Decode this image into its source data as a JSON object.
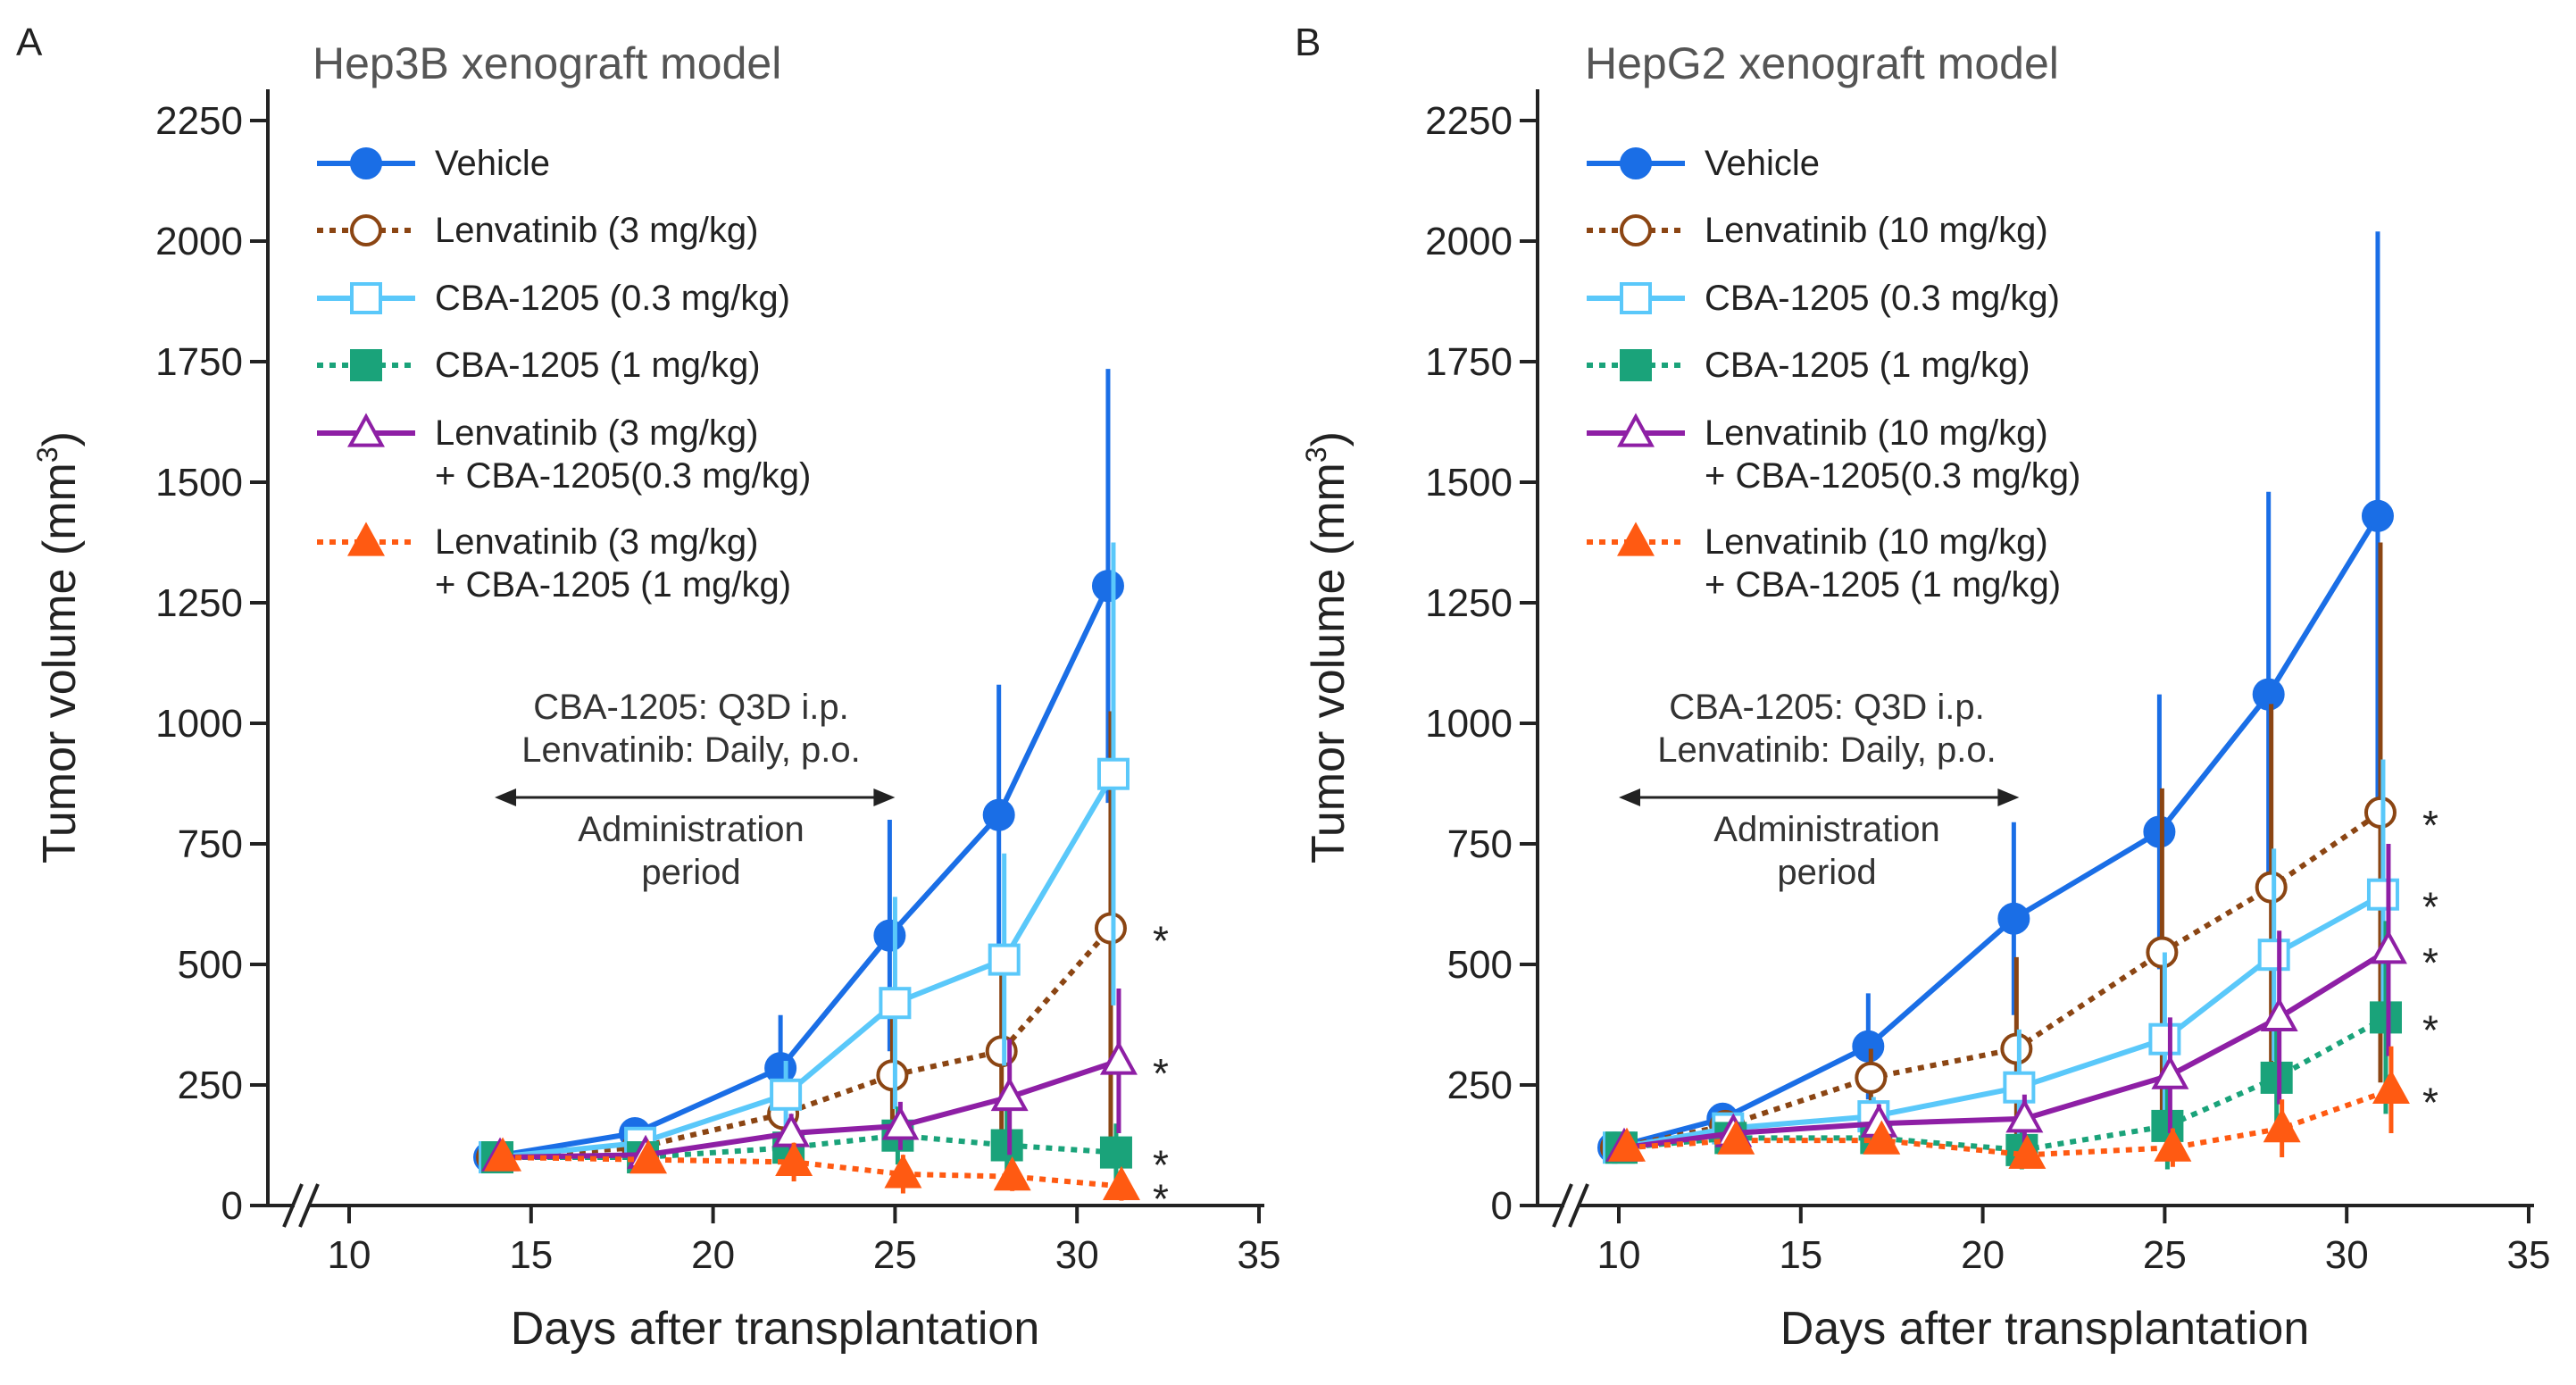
{
  "chart_data": [
    {
      "panel": "A",
      "type": "line",
      "title": "Hep3B xenograft model",
      "xlabel": "Days after transplantation",
      "ylabel": "Tumor volume (mm",
      "ylabel_sup": "3",
      "ylabel_close": ")",
      "xlim": [
        8,
        35
      ],
      "ylim": [
        0,
        2250
      ],
      "xticks": [
        10,
        15,
        20,
        25,
        30,
        35
      ],
      "yticks": [
        0,
        250,
        500,
        750,
        1000,
        1250,
        1500,
        1750,
        2000,
        2250
      ],
      "annotation": {
        "line1": "CBA-1205: Q3D i.p.",
        "line2": "Lenvatinib: Daily, p.o.",
        "period1": "Administration",
        "period2": "period",
        "arrow_from": 14,
        "arrow_to": 25
      },
      "significance_mark": "*",
      "series": [
        {
          "key": "veh",
          "name": "Vehicle",
          "name2": "",
          "color": "#1a6ee6",
          "dash": false,
          "marker": "circle",
          "filled": true,
          "x": [
            14,
            18,
            22,
            25,
            28,
            31
          ],
          "y": [
            100,
            150,
            285,
            560,
            810,
            1285
          ],
          "err": [
            10,
            30,
            110,
            240,
            270,
            450
          ],
          "star": false
        },
        {
          "key": "len",
          "name": "Lenvatinib (3 mg/kg)",
          "name2": "",
          "color": "#8b4513",
          "dash": true,
          "marker": "circle",
          "filled": false,
          "x": [
            14,
            18,
            22,
            25,
            28,
            31
          ],
          "y": [
            100,
            120,
            190,
            270,
            320,
            575
          ],
          "err": [
            10,
            20,
            50,
            150,
            180,
            450
          ],
          "star": true
        },
        {
          "key": "cbaLow",
          "name": "CBA-1205 (0.3 mg/kg)",
          "name2": "",
          "color": "#5ac8fa",
          "dash": false,
          "marker": "square",
          "filled": false,
          "x": [
            14,
            18,
            22,
            25,
            28,
            31
          ],
          "y": [
            100,
            130,
            230,
            420,
            510,
            895
          ],
          "err": [
            10,
            20,
            70,
            220,
            220,
            480
          ],
          "star": false
        },
        {
          "key": "cbaHigh",
          "name": "CBA-1205 (1 mg/kg)",
          "name2": "",
          "color": "#1aa37a",
          "dash": true,
          "marker": "square",
          "filled": true,
          "x": [
            14,
            18,
            22,
            25,
            28,
            31
          ],
          "y": [
            100,
            100,
            120,
            145,
            125,
            110
          ],
          "err": [
            10,
            20,
            30,
            60,
            90,
            60
          ],
          "star": true
        },
        {
          "key": "comboLow",
          "name": "Lenvatinib (3 mg/kg)",
          "name2": "+ CBA-1205(0.3 mg/kg)",
          "color": "#8e1fa5",
          "dash": false,
          "marker": "triangle",
          "filled": false,
          "x": [
            14,
            18,
            22,
            25,
            28,
            31
          ],
          "y": [
            100,
            105,
            150,
            165,
            225,
            300
          ],
          "err": [
            10,
            20,
            40,
            50,
            120,
            150
          ],
          "star": true
        },
        {
          "key": "comboHigh",
          "name": "Lenvatinib (3 mg/kg)",
          "name2": "+ CBA-1205 (1 mg/kg)",
          "color": "#ff5a12",
          "dash": true,
          "marker": "triangle",
          "filled": true,
          "x": [
            14,
            18,
            22,
            25,
            28,
            31
          ],
          "y": [
            100,
            95,
            90,
            65,
            60,
            40
          ],
          "err": [
            10,
            20,
            40,
            40,
            30,
            30
          ],
          "star": true
        }
      ]
    },
    {
      "panel": "B",
      "type": "line",
      "title": "HepG2 xenograft model",
      "xlabel": "Days after transplantation",
      "ylabel": "Tumor volume (mm",
      "ylabel_sup": "3",
      "ylabel_close": ")",
      "xlim": [
        8,
        35
      ],
      "ylim": [
        0,
        2250
      ],
      "xticks": [
        10,
        15,
        20,
        25,
        30,
        35
      ],
      "yticks": [
        0,
        250,
        500,
        750,
        1000,
        1250,
        1500,
        1750,
        2000,
        2250
      ],
      "annotation": {
        "line1": "CBA-1205: Q3D i.p.",
        "line2": "Lenvatinib: Daily, p.o.",
        "period1": "Administration",
        "period2": "period",
        "arrow_from": 10,
        "arrow_to": 21
      },
      "significance_mark": "*",
      "series": [
        {
          "key": "veh",
          "name": "Vehicle",
          "name2": "",
          "color": "#1a6ee6",
          "dash": false,
          "marker": "circle",
          "filled": true,
          "x": [
            10,
            13,
            17,
            21,
            25,
            28,
            31
          ],
          "y": [
            120,
            180,
            330,
            595,
            775,
            1060,
            1430
          ],
          "err": [
            10,
            20,
            110,
            200,
            285,
            420,
            590
          ],
          "star": false
        },
        {
          "key": "len",
          "name": "Lenvatinib (10 mg/kg)",
          "name2": "",
          "color": "#8b4513",
          "dash": true,
          "marker": "circle",
          "filled": false,
          "x": [
            10,
            13,
            17,
            21,
            25,
            28,
            31
          ],
          "y": [
            120,
            165,
            265,
            325,
            525,
            660,
            815
          ],
          "err": [
            10,
            20,
            60,
            190,
            340,
            380,
            560
          ],
          "star": true
        },
        {
          "key": "cbaLow",
          "name": "CBA-1205 (0.3 mg/kg)",
          "name2": "",
          "color": "#5ac8fa",
          "dash": false,
          "marker": "square",
          "filled": false,
          "x": [
            10,
            13,
            17,
            21,
            25,
            28,
            31
          ],
          "y": [
            120,
            160,
            185,
            245,
            345,
            520,
            645
          ],
          "err": [
            10,
            20,
            40,
            120,
            180,
            220,
            280
          ],
          "star": true
        },
        {
          "key": "cbaHigh",
          "name": "CBA-1205 (1 mg/kg)",
          "name2": "",
          "color": "#1aa37a",
          "dash": true,
          "marker": "square",
          "filled": true,
          "x": [
            10,
            13,
            17,
            21,
            25,
            28,
            31
          ],
          "y": [
            120,
            140,
            140,
            115,
            165,
            265,
            390
          ],
          "err": [
            10,
            20,
            30,
            40,
            90,
            120,
            200
          ],
          "star": true
        },
        {
          "key": "comboLow",
          "name": "Lenvatinib (10 mg/kg)",
          "name2": "+ CBA-1205(0.3 mg/kg)",
          "color": "#8e1fa5",
          "dash": false,
          "marker": "triangle",
          "filled": false,
          "x": [
            10,
            13,
            17,
            21,
            25,
            28,
            31
          ],
          "y": [
            120,
            150,
            170,
            180,
            270,
            390,
            530
          ],
          "err": [
            10,
            20,
            40,
            50,
            120,
            180,
            220
          ],
          "star": true
        },
        {
          "key": "comboHigh",
          "name": "Lenvatinib (10 mg/kg)",
          "name2": "+ CBA-1205 (1 mg/kg)",
          "color": "#ff5a12",
          "dash": true,
          "marker": "triangle",
          "filled": true,
          "x": [
            10,
            13,
            17,
            21,
            25,
            28,
            31
          ],
          "y": [
            120,
            135,
            135,
            105,
            120,
            160,
            240
          ],
          "err": [
            10,
            20,
            20,
            20,
            40,
            60,
            90
          ],
          "star": true
        }
      ]
    }
  ]
}
